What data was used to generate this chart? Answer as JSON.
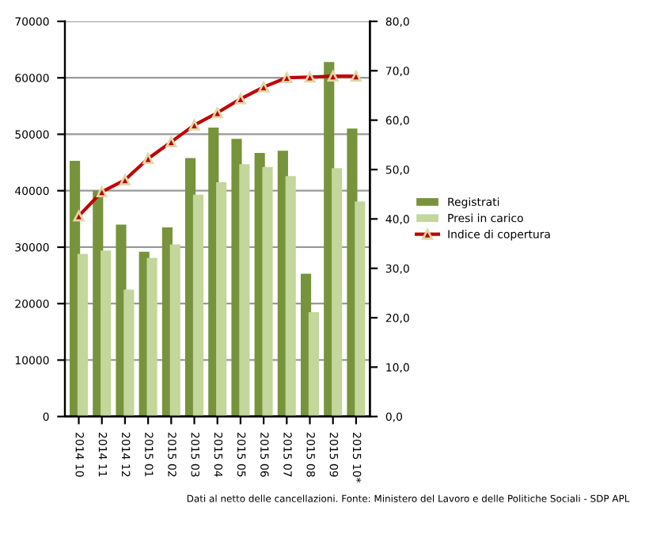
{
  "chart_data": {
    "type": "bar",
    "categories": [
      "2014 10",
      "2014 11",
      "2014 12",
      "2015 01",
      "2015 02",
      "2015 03",
      "2015 04",
      "2015 05",
      "2015 06",
      "2015 07",
      "2015 08",
      "2015 09",
      "2015 10*"
    ],
    "series": [
      {
        "name": "Registrati",
        "color": "#77933c",
        "values": [
          45300,
          40000,
          34000,
          29200,
          33500,
          45800,
          51200,
          49200,
          46700,
          47100,
          25300,
          62800,
          51000
        ]
      },
      {
        "name": "Presi in carico",
        "color": "#c3d69b",
        "values": [
          28800,
          29400,
          22500,
          28100,
          30500,
          39300,
          41500,
          44700,
          44200,
          42600,
          18500,
          44000,
          38100
        ]
      },
      {
        "name": "Indice di copertura",
        "type": "line",
        "axis": "y2",
        "color": "#c00000",
        "marker": "triangle",
        "values": [
          40.6,
          45.5,
          47.9,
          52.2,
          55.6,
          59.0,
          61.5,
          64.3,
          66.7,
          68.6,
          68.7,
          68.9,
          68.9
        ]
      }
    ],
    "ylim": [
      0,
      70000
    ],
    "yticks": [
      0,
      10000,
      20000,
      30000,
      40000,
      50000,
      60000,
      70000
    ],
    "y2lim": [
      0,
      80
    ],
    "y2ticks": [
      {
        "value": 0,
        "label": "0,0"
      },
      {
        "value": 10,
        "label": "10,0"
      },
      {
        "value": 20,
        "label": "20,0"
      },
      {
        "value": 30,
        "label": "30,0"
      },
      {
        "value": 40,
        "label": "40,0"
      },
      {
        "value": 50,
        "label": "50,0"
      },
      {
        "value": 60,
        "label": "60,0"
      },
      {
        "value": 70,
        "label": "70,0"
      },
      {
        "value": 80,
        "label": "80,0"
      }
    ],
    "grid": "y",
    "legend": "right",
    "annotations": [
      "Dati al netto delle cancellazioni. Fonte: Ministero del Lavoro e delle Politiche Sociali - SDP APL"
    ]
  }
}
